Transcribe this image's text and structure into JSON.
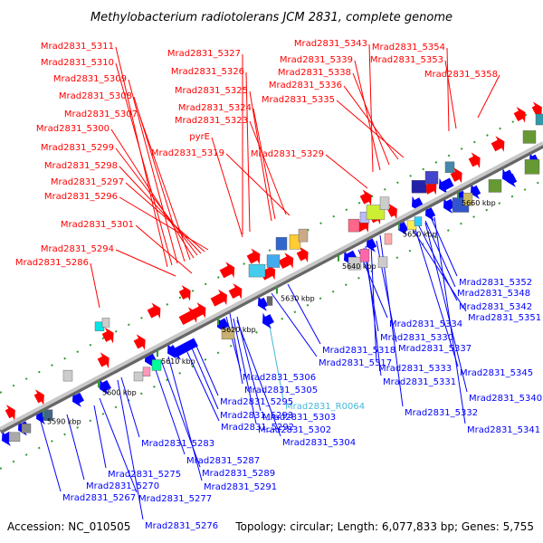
{
  "title": "Methylobacterium radiotolerans JCM 2831, complete genome",
  "footer": {
    "accession": "Accession: NC_010505",
    "summary": "Topology: circular; Length: 6,077,833 bp; Genes: 5,755"
  },
  "colors": {
    "top_label": "#ff0000",
    "bottom_label": "#0000ff",
    "rna_label": "#44b8d8",
    "forward_gene": "#ff0000",
    "reverse_gene": "#0000ff",
    "axis": "#888888",
    "tick": "#339933"
  },
  "scale_ticks": [
    "5590 kbp",
    "5600 kbp",
    "5610 kbp",
    "5620 kbp",
    "5630 kbp",
    "5640 kbp",
    "5650 kbp",
    "5660 kbp"
  ],
  "top_labels": [
    "Mrad2831_5311",
    "Mrad2831_5310",
    "Mrad2831_5309",
    "Mrad2831_5308",
    "Mrad2831_5307",
    "Mrad2831_5300",
    "Mrad2831_5299",
    "Mrad2831_5298",
    "Mrad2831_5297",
    "Mrad2831_5296",
    "Mrad2831_5301",
    "Mrad2831_5294",
    "Mrad2831_5286",
    "Mrad2831_5327",
    "Mrad2831_5326",
    "Mrad2831_5325",
    "Mrad2831_5324",
    "Mrad2831_5323",
    "pyrE",
    "Mrad2831_5319",
    "Mrad2831_5329",
    "Mrad2831_5343",
    "Mrad2831_5339",
    "Mrad2831_5338",
    "Mrad2831_5336",
    "Mrad2831_5335",
    "Mrad2831_5354",
    "Mrad2831_5353",
    "Mrad2831_5358"
  ],
  "bottom_labels": [
    "Mrad2831_5352",
    "Mrad2831_5348",
    "Mrad2831_5342",
    "Mrad2831_5351",
    "Mrad2831_5334",
    "Mrad2831_5330",
    "Mrad2831_5318",
    "Mrad2831_5337",
    "Mrad2831_5317",
    "Mrad2831_5333",
    "Mrad2831_5331",
    "Mrad2831_5345",
    "Mrad2831_5306",
    "Mrad2831_5305",
    "Mrad2831_R0064",
    "Mrad2831_5340",
    "Mrad2831_5295",
    "Mrad2831_5303",
    "Mrad2831_5332",
    "Mrad2831_5293",
    "Mrad2831_5292",
    "Mrad2831_5302",
    "Mrad2831_5341",
    "Mrad2831_5283",
    "Mrad2831_5304",
    "Mrad2831_5287",
    "Mrad2831_5275",
    "Mrad2831_5289",
    "Mrad2831_5270",
    "Mrad2831_5291",
    "Mrad2831_5267",
    "Mrad2831_5277",
    "Mrad2831_5276"
  ]
}
